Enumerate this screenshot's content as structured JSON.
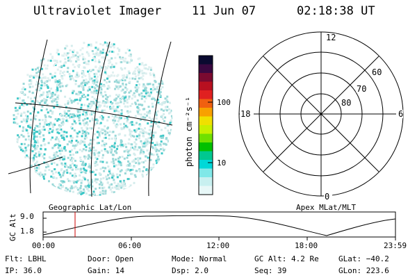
{
  "header": {
    "title": "Ultraviolet Imager",
    "date": "11 Jun 07",
    "time": "02:18:38 UT"
  },
  "colorbar": {
    "unit_label": "photon cm⁻²s⁻¹",
    "ticks": [
      "100",
      "10"
    ],
    "colors": [
      "#0a0a30",
      "#3a0840",
      "#7a0a30",
      "#b81020",
      "#e02020",
      "#f06010",
      "#f8a000",
      "#f0e000",
      "#c8f000",
      "#70e000",
      "#00c000",
      "#00c890",
      "#00d8d8",
      "#80e8e8",
      "#c8f0f0",
      "#e8f8f8"
    ]
  },
  "polar": {
    "hour_labels": {
      "top": "12",
      "left": "18",
      "right": "6",
      "bottom": "0"
    },
    "lat_labels": [
      "60",
      "70",
      "80"
    ]
  },
  "timeline": {
    "axis_label": "GC Alt",
    "left_label": "Geographic Lat/Lon",
    "right_label": "Apex MLat/MLT",
    "y_ticks": [
      "9.0",
      "1.8"
    ],
    "x_ticks": [
      "00:00",
      "06:00",
      "12:00",
      "18:00",
      "23:59"
    ],
    "marker_time": "02:18:38"
  },
  "info": {
    "flt": "Flt: LBHL",
    "door": "Door: Open",
    "mode": "Mode: Normal",
    "gcalt": "GC Alt: 4.2 Re",
    "glat": "GLat: −40.2",
    "ip": "IP: 36.0",
    "gain": "Gain: 14",
    "dsp": "Dsp:    2.0",
    "seq": "Seq: 39",
    "glon": "GLon: 223.6"
  }
}
